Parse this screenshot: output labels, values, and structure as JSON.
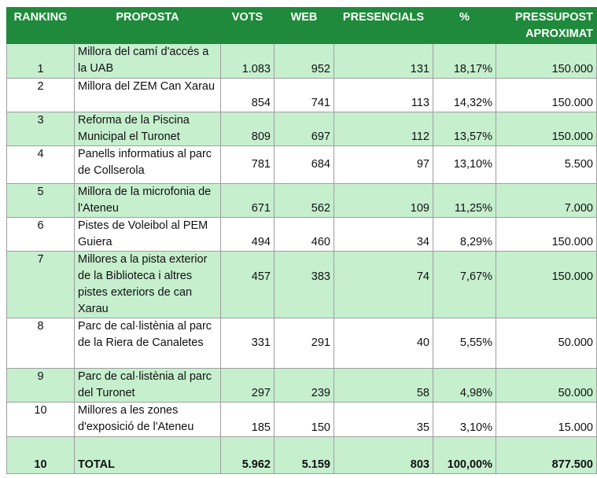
{
  "headers": {
    "ranking": "RANKING",
    "proposta": "PROPOSTA",
    "vots": "VOTS",
    "web": "WEB",
    "presencials": "PRESENCIALS",
    "percent": "%",
    "pressupost": "PRESSUPOST APROXIMAT"
  },
  "rows": [
    {
      "rank": "1",
      "proposta": "Millora del camí d'accés a la UAB",
      "vots": "1.083",
      "web": "952",
      "presencials": "131",
      "percent": "18,17%",
      "pressupost": "150.000"
    },
    {
      "rank": "2",
      "proposta": "Millora del ZEM Can Xarau",
      "vots": "854",
      "web": "741",
      "presencials": "113",
      "percent": "14,32%",
      "pressupost": "150.000"
    },
    {
      "rank": "3",
      "proposta": "Reforma de la Piscina Municipal el Turonet",
      "vots": "809",
      "web": "697",
      "presencials": "112",
      "percent": "13,57%",
      "pressupost": "150.000"
    },
    {
      "rank": "4",
      "proposta": "Panells informatius al parc de Collserola",
      "vots": "781",
      "web": "684",
      "presencials": "97",
      "percent": "13,10%",
      "pressupost": "5.500"
    },
    {
      "rank": "5",
      "proposta": "Millora de la microfonia de l'Ateneu",
      "vots": "671",
      "web": "562",
      "presencials": "109",
      "percent": "11,25%",
      "pressupost": "7.000"
    },
    {
      "rank": "6",
      "proposta": "Pistes de Voleibol al PEM Guiera",
      "vots": "494",
      "web": "460",
      "presencials": "34",
      "percent": "8,29%",
      "pressupost": "150.000"
    },
    {
      "rank": "7",
      "proposta": "Millores a la pista exterior de la Biblioteca i altres pistes exteriors de can Xarau",
      "vots": "457",
      "web": "383",
      "presencials": "74",
      "percent": "7,67%",
      "pressupost": "150.000"
    },
    {
      "rank": "8",
      "proposta": "Parc de cal·listènia al parc de la Riera de Canaletes",
      "vots": "331",
      "web": "291",
      "presencials": "40",
      "percent": "5,55%",
      "pressupost": "50.000"
    },
    {
      "rank": "9",
      "proposta": "Parc de cal·listènia al parc del Turonet",
      "vots": "297",
      "web": "239",
      "presencials": "58",
      "percent": "4,98%",
      "pressupost": "50.000"
    },
    {
      "rank": "10",
      "proposta": "Millores a les zones d'exposició de l'Ateneu",
      "vots": "185",
      "web": "150",
      "presencials": "35",
      "percent": "3,10%",
      "pressupost": "15.000"
    }
  ],
  "total": {
    "rank": "10",
    "label": "TOTAL",
    "vots": "5.962",
    "web": "5.159",
    "presencials": "803",
    "percent": "100,00%",
    "pressupost": "877.500"
  }
}
